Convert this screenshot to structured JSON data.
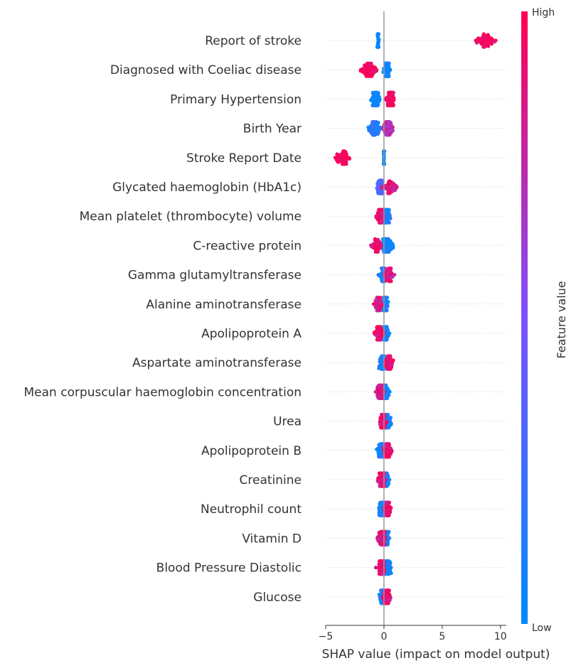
{
  "chart_data": {
    "type": "scatter",
    "subtype": "shap-beeswarm",
    "xlabel": "SHAP value (impact on model output)",
    "xlim": [
      -5,
      10.5
    ],
    "xticks": [
      -5,
      0,
      5,
      10
    ],
    "colorbar": {
      "title": "Feature value",
      "high_label": "High",
      "low_label": "Low",
      "low_color": "#008bfb",
      "mid_color": "#7c52ff",
      "high_color": "#ff0052"
    },
    "grid": false,
    "features": [
      {
        "name": "Report of stroke",
        "clusters": [
          {
            "center": -0.5,
            "spread": 0.1,
            "count": 60,
            "value": 0.0
          },
          {
            "center": 8.7,
            "spread": 1.2,
            "count": 60,
            "value": 1.0
          }
        ]
      },
      {
        "name": "Diagnosed with Coeliac disease",
        "clusters": [
          {
            "center": 0.3,
            "spread": 0.4,
            "count": 70,
            "value": 0.0
          },
          {
            "center": -1.3,
            "spread": 1.0,
            "count": 70,
            "value": 1.0
          }
        ]
      },
      {
        "name": "Primary Hypertension",
        "clusters": [
          {
            "center": -0.7,
            "spread": 0.7,
            "count": 60,
            "value": 0.0
          },
          {
            "center": 0.5,
            "spread": 0.5,
            "count": 80,
            "value": 1.0
          }
        ]
      },
      {
        "name": "Birth Year",
        "clusters": [
          {
            "center": -0.8,
            "spread": 0.8,
            "count": 70,
            "value": 0.15
          },
          {
            "center": 0.3,
            "spread": 0.6,
            "count": 70,
            "value": 0.75
          }
        ]
      },
      {
        "name": "Stroke Report Date",
        "clusters": [
          {
            "center": 0.0,
            "spread": 0.04,
            "count": 60,
            "value": 0.0
          },
          {
            "center": -3.5,
            "spread": 1.0,
            "count": 60,
            "value": 1.0
          }
        ]
      },
      {
        "name": "Glycated haemoglobin (HbA1c)",
        "clusters": [
          {
            "center": -0.3,
            "spread": 0.5,
            "count": 70,
            "value": 0.3
          },
          {
            "center": 0.5,
            "spread": 1.0,
            "count": 50,
            "value": 0.9
          }
        ]
      },
      {
        "name": "Mean platelet (thrombocyte) volume",
        "clusters": [
          {
            "center": 0.2,
            "spread": 0.6,
            "count": 60,
            "value": 0.1
          },
          {
            "center": -0.3,
            "spread": 0.4,
            "count": 70,
            "value": 0.9
          }
        ]
      },
      {
        "name": "C-reactive protein",
        "clusters": [
          {
            "center": 0.3,
            "spread": 0.8,
            "count": 80,
            "value": 0.05
          },
          {
            "center": -0.6,
            "spread": 0.6,
            "count": 40,
            "value": 0.95
          }
        ]
      },
      {
        "name": "Gamma glutamyltransferase",
        "clusters": [
          {
            "center": -0.1,
            "spread": 0.5,
            "count": 70,
            "value": 0.1
          },
          {
            "center": 0.4,
            "spread": 0.5,
            "count": 50,
            "value": 0.85
          }
        ]
      },
      {
        "name": "Alanine aminotransferase",
        "clusters": [
          {
            "center": 0.1,
            "spread": 0.4,
            "count": 70,
            "value": 0.1
          },
          {
            "center": -0.5,
            "spread": 0.5,
            "count": 50,
            "value": 0.9
          }
        ]
      },
      {
        "name": "Apolipoprotein A",
        "clusters": [
          {
            "center": 0.1,
            "spread": 0.5,
            "count": 70,
            "value": 0.1
          },
          {
            "center": -0.4,
            "spread": 0.6,
            "count": 50,
            "value": 0.9
          }
        ]
      },
      {
        "name": "Aspartate aminotransferase",
        "clusters": [
          {
            "center": -0.1,
            "spread": 0.4,
            "count": 70,
            "value": 0.1
          },
          {
            "center": 0.4,
            "spread": 0.6,
            "count": 50,
            "value": 0.9
          }
        ]
      },
      {
        "name": "Mean corpuscular haemoglobin concentration",
        "clusters": [
          {
            "center": 0.1,
            "spread": 0.5,
            "count": 60,
            "value": 0.1
          },
          {
            "center": -0.3,
            "spread": 0.5,
            "count": 60,
            "value": 0.9
          }
        ]
      },
      {
        "name": "Urea",
        "clusters": [
          {
            "center": 0.2,
            "spread": 0.6,
            "count": 60,
            "value": 0.1
          },
          {
            "center": -0.1,
            "spread": 0.4,
            "count": 60,
            "value": 0.9
          }
        ]
      },
      {
        "name": "Apolipoprotein B",
        "clusters": [
          {
            "center": -0.2,
            "spread": 0.6,
            "count": 60,
            "value": 0.1
          },
          {
            "center": 0.3,
            "spread": 0.5,
            "count": 60,
            "value": 0.9
          }
        ]
      },
      {
        "name": "Creatinine",
        "clusters": [
          {
            "center": 0.1,
            "spread": 0.5,
            "count": 60,
            "value": 0.1
          },
          {
            "center": -0.2,
            "spread": 0.4,
            "count": 60,
            "value": 0.9
          }
        ]
      },
      {
        "name": "Neutrophil count",
        "clusters": [
          {
            "center": -0.1,
            "spread": 0.5,
            "count": 60,
            "value": 0.1
          },
          {
            "center": 0.3,
            "spread": 0.5,
            "count": 60,
            "value": 0.9
          }
        ]
      },
      {
        "name": "Vitamin D",
        "clusters": [
          {
            "center": 0.2,
            "spread": 0.4,
            "count": 60,
            "value": 0.1
          },
          {
            "center": -0.2,
            "spread": 0.5,
            "count": 60,
            "value": 0.9
          }
        ]
      },
      {
        "name": "Blood Pressure Diastolic",
        "clusters": [
          {
            "center": 0.3,
            "spread": 0.6,
            "count": 60,
            "value": 0.1
          },
          {
            "center": -0.2,
            "spread": 0.5,
            "count": 60,
            "value": 0.9
          }
        ]
      },
      {
        "name": "Glucose",
        "clusters": [
          {
            "center": -0.1,
            "spread": 0.5,
            "count": 60,
            "value": 0.1
          },
          {
            "center": 0.3,
            "spread": 0.5,
            "count": 60,
            "value": 0.9
          }
        ]
      }
    ]
  }
}
